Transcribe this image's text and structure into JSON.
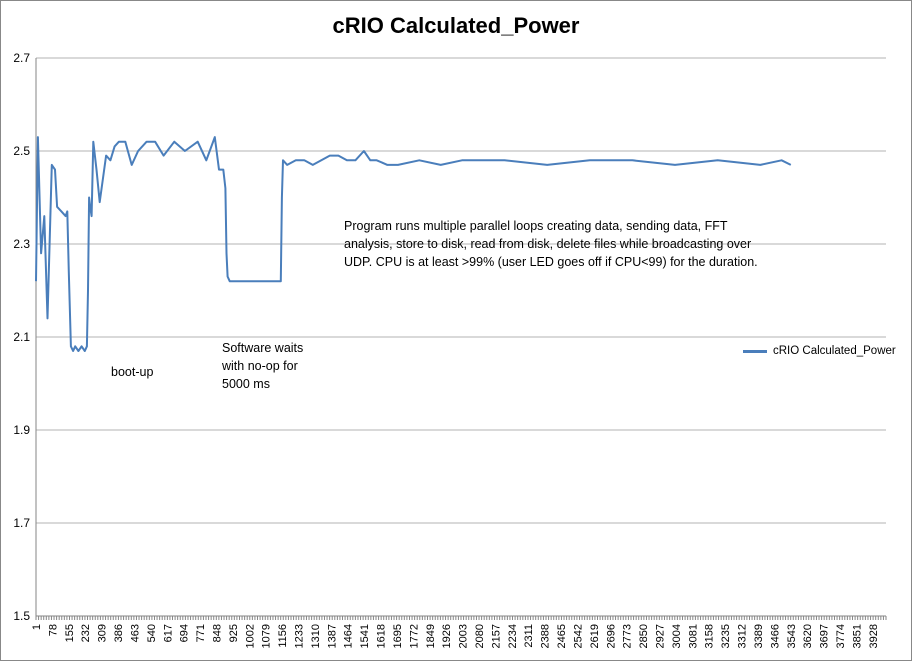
{
  "chart_data": {
    "type": "line",
    "title": "cRIO Calculated_Power",
    "xlabel": "",
    "ylabel": "",
    "ylim": [
      1.5,
      2.7
    ],
    "y_ticks": [
      "1.5",
      "1.7",
      "1.9",
      "2.1",
      "2.3",
      "2.5",
      "2.7"
    ],
    "x_range": [
      1,
      3990
    ],
    "x_ticks": [
      "1",
      "78",
      "155",
      "232",
      "309",
      "386",
      "463",
      "540",
      "617",
      "694",
      "771",
      "848",
      "925",
      "1002",
      "1079",
      "1156",
      "1233",
      "1310",
      "1387",
      "1464",
      "1541",
      "1618",
      "1695",
      "1772",
      "1849",
      "1926",
      "2003",
      "2080",
      "2157",
      "2234",
      "2311",
      "2388",
      "2465",
      "2542",
      "2619",
      "2696",
      "2773",
      "2850",
      "2927",
      "3004",
      "3081",
      "3158",
      "3235",
      "3312",
      "3389",
      "3466",
      "3543",
      "3620",
      "3697",
      "3774",
      "3851",
      "3928"
    ],
    "grid": "horizontal",
    "legend_position": "right",
    "series": [
      {
        "name": "cRIO Calculated_Power",
        "color": "#4a7ebb",
        "x": [
          1,
          10,
          25,
          40,
          55,
          75,
          90,
          100,
          120,
          140,
          148,
          155,
          165,
          175,
          185,
          200,
          215,
          230,
          240,
          245,
          250,
          255,
          262,
          270,
          285,
          300,
          330,
          350,
          370,
          390,
          420,
          450,
          480,
          520,
          560,
          600,
          650,
          700,
          760,
          800,
          840,
          860,
          880,
          890,
          895,
          900,
          910,
          940,
          980,
          1020,
          1060,
          1100,
          1140,
          1150,
          1155,
          1160,
          1180,
          1220,
          1260,
          1300,
          1340,
          1380,
          1420,
          1460,
          1500,
          1540,
          1570,
          1600,
          1650,
          1700,
          1800,
          1900,
          2000,
          2200,
          2400,
          2600,
          2800,
          3000,
          3200,
          3400,
          3500,
          3543
        ],
        "y": [
          2.22,
          2.53,
          2.28,
          2.36,
          2.14,
          2.47,
          2.46,
          2.38,
          2.37,
          2.36,
          2.37,
          2.24,
          2.08,
          2.07,
          2.08,
          2.07,
          2.08,
          2.07,
          2.08,
          2.2,
          2.4,
          2.38,
          2.36,
          2.52,
          2.46,
          2.39,
          2.49,
          2.48,
          2.51,
          2.52,
          2.52,
          2.47,
          2.5,
          2.52,
          2.52,
          2.49,
          2.52,
          2.5,
          2.52,
          2.48,
          2.53,
          2.46,
          2.46,
          2.42,
          2.28,
          2.23,
          2.22,
          2.22,
          2.22,
          2.22,
          2.22,
          2.22,
          2.22,
          2.22,
          2.4,
          2.48,
          2.47,
          2.48,
          2.48,
          2.47,
          2.48,
          2.49,
          2.49,
          2.48,
          2.48,
          2.5,
          2.48,
          2.48,
          2.47,
          2.47,
          2.48,
          2.47,
          2.48,
          2.48,
          2.47,
          2.48,
          2.48,
          2.47,
          2.48,
          2.47,
          2.48,
          2.47
        ]
      }
    ],
    "annotations": [
      "boot-up",
      "Software waits with no-op for 5000 ms",
      "Program runs multiple parallel loops creating data, sending data, FFT analysis, store to disk, read from disk, delete files while broadcasting over UDP. CPU is at least >99% (user LED goes off if CPU<99) for the duration."
    ]
  }
}
